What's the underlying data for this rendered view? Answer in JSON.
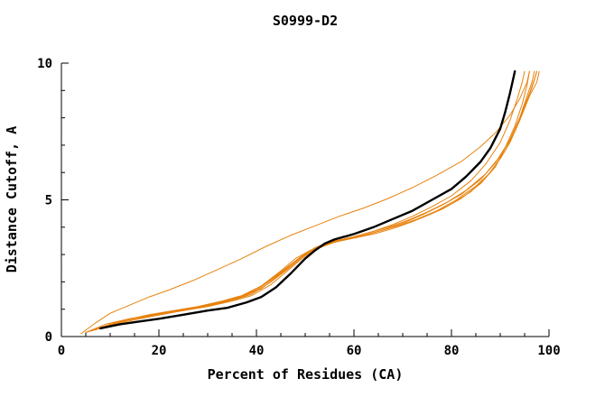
{
  "colors": {
    "background": "#ffffff",
    "axis": "#000000",
    "accent_orange": "#e8820e",
    "highlight_black": "#000000"
  },
  "chart_data": {
    "type": "line",
    "title": "S0999-D2",
    "xlabel": "Percent of Residues (CA)",
    "ylabel": "Distance Cutoff, A",
    "xlim": [
      0,
      100
    ],
    "ylim": [
      0,
      10
    ],
    "xticks": [
      0,
      20,
      40,
      60,
      80,
      100
    ],
    "yticks": [
      0,
      5,
      10
    ],
    "x_minor_step": 5,
    "y_minor_step": 1,
    "grid": false,
    "legend_position": "none",
    "series": [
      {
        "name": "model-1",
        "color": "#e8820e",
        "width": 1,
        "points": [
          [
            4,
            0.1
          ],
          [
            7,
            0.5
          ],
          [
            10,
            0.85
          ],
          [
            14,
            1.15
          ],
          [
            18,
            1.45
          ],
          [
            22,
            1.7
          ],
          [
            27,
            2.05
          ],
          [
            32,
            2.45
          ],
          [
            37,
            2.85
          ],
          [
            42,
            3.3
          ],
          [
            47,
            3.7
          ],
          [
            52,
            4.05
          ],
          [
            57,
            4.4
          ],
          [
            62,
            4.7
          ],
          [
            67,
            5.05
          ],
          [
            72,
            5.45
          ],
          [
            77,
            5.9
          ],
          [
            82,
            6.4
          ],
          [
            86,
            6.95
          ],
          [
            89,
            7.45
          ],
          [
            92,
            8.1
          ],
          [
            94,
            8.7
          ],
          [
            95.5,
            9.3
          ],
          [
            96,
            9.7
          ]
        ]
      },
      {
        "name": "model-2",
        "color": "#e8820e",
        "width": 1,
        "points": [
          [
            5,
            0.15
          ],
          [
            9,
            0.45
          ],
          [
            14,
            0.65
          ],
          [
            19,
            0.8
          ],
          [
            24,
            0.95
          ],
          [
            29,
            1.1
          ],
          [
            34,
            1.3
          ],
          [
            38,
            1.55
          ],
          [
            42,
            1.95
          ],
          [
            46,
            2.5
          ],
          [
            49,
            2.9
          ],
          [
            52,
            3.2
          ],
          [
            55,
            3.4
          ],
          [
            58,
            3.55
          ],
          [
            62,
            3.7
          ],
          [
            66,
            3.9
          ],
          [
            70,
            4.15
          ],
          [
            74,
            4.45
          ],
          [
            78,
            4.8
          ],
          [
            82,
            5.2
          ],
          [
            86,
            5.75
          ],
          [
            89,
            6.35
          ],
          [
            92,
            7.2
          ],
          [
            94,
            8.0
          ],
          [
            96,
            8.9
          ],
          [
            97,
            9.4
          ],
          [
            97.5,
            9.7
          ]
        ]
      },
      {
        "name": "model-3",
        "color": "#e8820e",
        "width": 1,
        "points": [
          [
            6,
            0.2
          ],
          [
            11,
            0.5
          ],
          [
            16,
            0.7
          ],
          [
            21,
            0.85
          ],
          [
            26,
            1.0
          ],
          [
            31,
            1.2
          ],
          [
            36,
            1.4
          ],
          [
            40,
            1.7
          ],
          [
            44,
            2.2
          ],
          [
            48,
            2.75
          ],
          [
            51,
            3.1
          ],
          [
            54,
            3.35
          ],
          [
            57,
            3.5
          ],
          [
            61,
            3.65
          ],
          [
            65,
            3.85
          ],
          [
            69,
            4.05
          ],
          [
            73,
            4.3
          ],
          [
            77,
            4.6
          ],
          [
            81,
            5.0
          ],
          [
            85,
            5.5
          ],
          [
            88,
            6.0
          ],
          [
            91,
            6.8
          ],
          [
            93,
            7.5
          ],
          [
            95,
            8.4
          ],
          [
            96.5,
            9.1
          ],
          [
            97.5,
            9.7
          ]
        ]
      },
      {
        "name": "model-4",
        "color": "#e8820e",
        "width": 1,
        "points": [
          [
            7,
            0.25
          ],
          [
            12,
            0.55
          ],
          [
            17,
            0.75
          ],
          [
            22,
            0.9
          ],
          [
            27,
            1.05
          ],
          [
            32,
            1.25
          ],
          [
            37,
            1.45
          ],
          [
            41,
            1.75
          ],
          [
            45,
            2.3
          ],
          [
            49,
            2.9
          ],
          [
            52,
            3.25
          ],
          [
            55,
            3.45
          ],
          [
            59,
            3.6
          ],
          [
            63,
            3.8
          ],
          [
            67,
            4.0
          ],
          [
            71,
            4.25
          ],
          [
            75,
            4.55
          ],
          [
            79,
            4.9
          ],
          [
            83,
            5.35
          ],
          [
            87,
            5.95
          ],
          [
            90,
            6.6
          ],
          [
            92,
            7.2
          ],
          [
            94,
            8.0
          ],
          [
            95.5,
            8.8
          ],
          [
            96.5,
            9.3
          ],
          [
            97,
            9.7
          ]
        ]
      },
      {
        "name": "model-5",
        "color": "#e8820e",
        "width": 1,
        "points": [
          [
            5,
            0.15
          ],
          [
            10,
            0.45
          ],
          [
            15,
            0.65
          ],
          [
            20,
            0.8
          ],
          [
            25,
            0.95
          ],
          [
            30,
            1.1
          ],
          [
            35,
            1.3
          ],
          [
            39,
            1.5
          ],
          [
            43,
            1.9
          ],
          [
            47,
            2.5
          ],
          [
            50,
            2.95
          ],
          [
            53,
            3.25
          ],
          [
            56,
            3.45
          ],
          [
            60,
            3.6
          ],
          [
            64,
            3.75
          ],
          [
            68,
            3.95
          ],
          [
            72,
            4.2
          ],
          [
            76,
            4.5
          ],
          [
            80,
            4.85
          ],
          [
            84,
            5.3
          ],
          [
            87,
            5.8
          ],
          [
            90,
            6.5
          ],
          [
            92,
            7.1
          ],
          [
            94,
            7.9
          ],
          [
            96,
            8.8
          ],
          [
            97.5,
            9.3
          ],
          [
            98,
            9.7
          ]
        ]
      },
      {
        "name": "model-6",
        "color": "#e8820e",
        "width": 1,
        "points": [
          [
            8,
            0.3
          ],
          [
            13,
            0.6
          ],
          [
            18,
            0.8
          ],
          [
            23,
            0.95
          ],
          [
            28,
            1.1
          ],
          [
            33,
            1.3
          ],
          [
            37,
            1.5
          ],
          [
            41,
            1.85
          ],
          [
            45,
            2.4
          ],
          [
            48,
            2.85
          ],
          [
            51,
            3.15
          ],
          [
            54,
            3.4
          ],
          [
            58,
            3.55
          ],
          [
            62,
            3.7
          ],
          [
            66,
            3.9
          ],
          [
            70,
            4.1
          ],
          [
            74,
            4.35
          ],
          [
            78,
            4.65
          ],
          [
            82,
            5.05
          ],
          [
            86,
            5.6
          ],
          [
            89,
            6.2
          ],
          [
            91,
            6.9
          ],
          [
            93,
            7.7
          ],
          [
            94.5,
            8.5
          ],
          [
            95.5,
            9.2
          ],
          [
            96,
            9.7
          ]
        ]
      },
      {
        "name": "model-7",
        "color": "#e8820e",
        "width": 1,
        "points": [
          [
            6,
            0.2
          ],
          [
            12,
            0.5
          ],
          [
            18,
            0.72
          ],
          [
            24,
            0.92
          ],
          [
            30,
            1.12
          ],
          [
            35,
            1.32
          ],
          [
            39,
            1.55
          ],
          [
            43,
            2.0
          ],
          [
            47,
            2.55
          ],
          [
            50,
            3.0
          ],
          [
            53,
            3.3
          ],
          [
            56,
            3.5
          ],
          [
            60,
            3.65
          ],
          [
            64,
            3.85
          ],
          [
            68,
            4.1
          ],
          [
            72,
            4.4
          ],
          [
            76,
            4.75
          ],
          [
            80,
            5.15
          ],
          [
            84,
            5.7
          ],
          [
            87,
            6.3
          ],
          [
            90,
            7.1
          ],
          [
            92,
            7.9
          ],
          [
            93.5,
            8.7
          ],
          [
            94.5,
            9.3
          ],
          [
            95,
            9.7
          ]
        ]
      },
      {
        "name": "highlighted-model",
        "color": "#000000",
        "width": 2.4,
        "points": [
          [
            8,
            0.3
          ],
          [
            12,
            0.45
          ],
          [
            16,
            0.55
          ],
          [
            20,
            0.65
          ],
          [
            25,
            0.8
          ],
          [
            30,
            0.95
          ],
          [
            34,
            1.05
          ],
          [
            38,
            1.25
          ],
          [
            41,
            1.45
          ],
          [
            44,
            1.8
          ],
          [
            47,
            2.3
          ],
          [
            50,
            2.85
          ],
          [
            52,
            3.15
          ],
          [
            54,
            3.4
          ],
          [
            56,
            3.55
          ],
          [
            60,
            3.75
          ],
          [
            64,
            4.0
          ],
          [
            68,
            4.3
          ],
          [
            72,
            4.6
          ],
          [
            76,
            5.0
          ],
          [
            80,
            5.4
          ],
          [
            83,
            5.85
          ],
          [
            86,
            6.4
          ],
          [
            88,
            6.9
          ],
          [
            90,
            7.6
          ],
          [
            91,
            8.2
          ],
          [
            92,
            8.9
          ],
          [
            92.5,
            9.3
          ],
          [
            93,
            9.7
          ]
        ]
      }
    ]
  }
}
